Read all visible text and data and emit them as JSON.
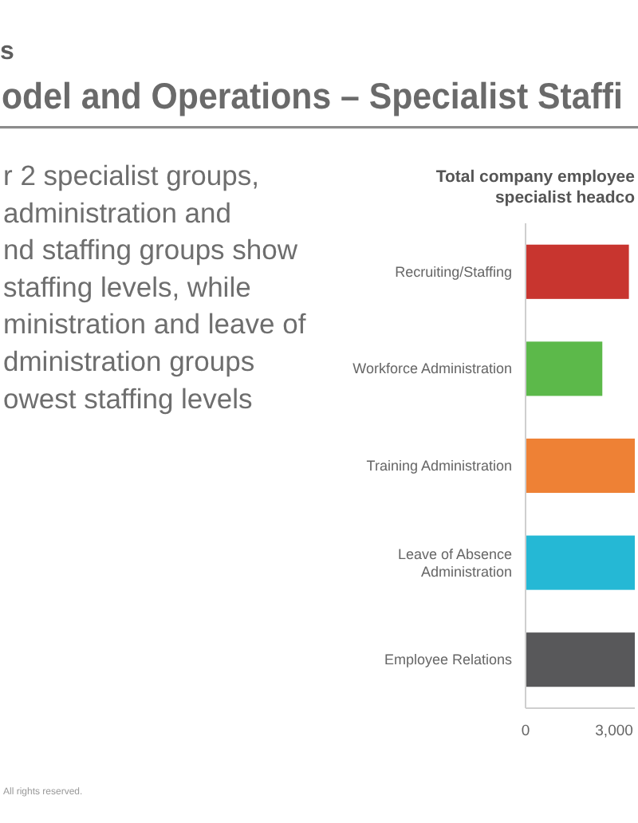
{
  "chart_data": [
    {
      "type": "other",
      "title": "odel and Operations – Specialist Staffi",
      "subtitle": "s",
      "annotations": [
        "r 2 specialist groups,",
        "administration and",
        "nd staffing groups show",
        "staffing levels, while",
        "ministration and leave of",
        "dministration groups",
        "owest staffing levels",
        "All rights reserved."
      ]
    },
    {
      "type": "bar",
      "orientation": "horizontal",
      "title": "Total company employee specialist headco",
      "categories": [
        "Recruiting/Staffing",
        "Workforce Administration",
        "Training Administration",
        "Leave of Absence Administration",
        "Employee Relations"
      ],
      "values": [
        3500,
        2600,
        3700,
        3700,
        3700
      ],
      "colors": [
        "#c8352f",
        "#5cb94a",
        "#ee8135",
        "#25b8d5",
        "#58585a"
      ],
      "xlim": [
        0,
        3700
      ],
      "xticks": [
        0,
        {
          "value": 3000,
          "label": "3,000"
        }
      ]
    }
  ]
}
